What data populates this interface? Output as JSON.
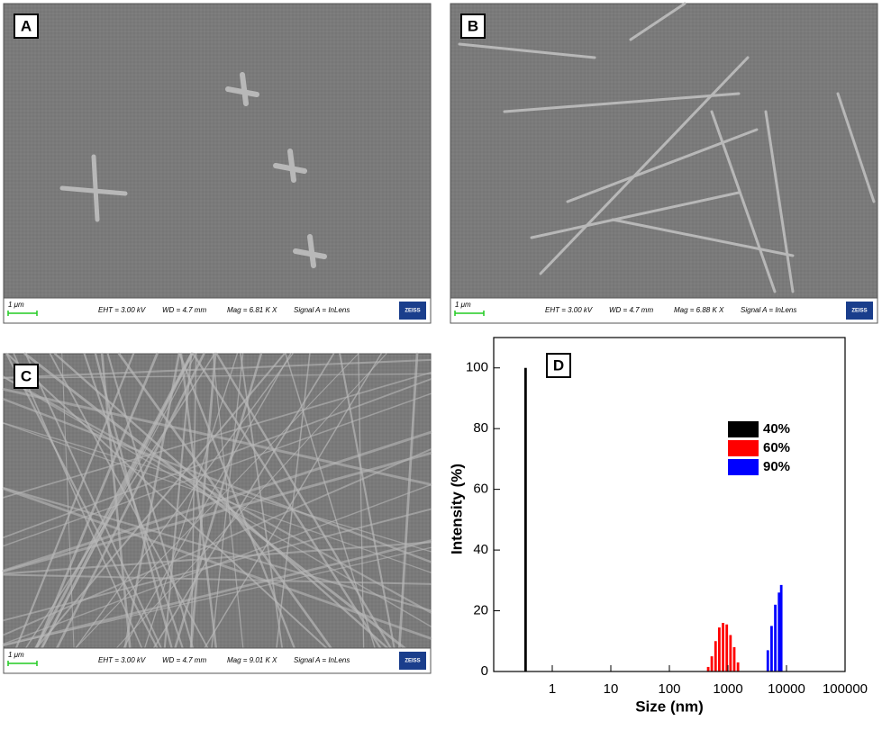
{
  "panels": [
    {
      "label": "A",
      "scale": "1 μm",
      "eht": "EHT =  3.00 kV",
      "wd": "WD =  4.7 mm",
      "mag": "Mag =   6.81 K X",
      "signal": "Signal A = InLens",
      "logo": "ZEISS"
    },
    {
      "label": "B",
      "scale": "1 μm",
      "eht": "EHT =  3.00 kV",
      "wd": "WD =  4.7 mm",
      "mag": "Mag =   6.88 K X",
      "signal": "Signal A = InLens",
      "logo": "ZEISS"
    },
    {
      "label": "C",
      "scale": "1 μm",
      "eht": "EHT =  3.00 kV",
      "wd": "WD =  4.7 mm",
      "mag": "Mag =   9.01 K X",
      "signal": "Signal A = InLens",
      "logo": "ZEISS"
    }
  ],
  "chart_data": {
    "type": "bar",
    "label": "D",
    "x_label": "Size (nm)",
    "y_label": "Intensity (%)",
    "xscale": "log",
    "xlim": [
      0.1,
      100000
    ],
    "xticks": [
      1,
      10,
      100,
      1000,
      10000,
      100000
    ],
    "ylim": [
      0,
      110
    ],
    "yticks": [
      0,
      20,
      40,
      60,
      80,
      100
    ],
    "series": [
      {
        "name": "40%",
        "color": "#000000",
        "x": [
          0.35
        ],
        "values": [
          100
        ]
      },
      {
        "name": "60%",
        "color": "#ff0000",
        "x": [
          460,
          530,
          615,
          712,
          825,
          955,
          1106,
          1281,
          1484
        ],
        "values": [
          1.5,
          5,
          10,
          14.5,
          16,
          15.5,
          12,
          8,
          3
        ]
      },
      {
        "name": "90%",
        "color": "#0000ff",
        "x": [
          4800,
          5560,
          6440,
          7460,
          8130
        ],
        "values": [
          7,
          15,
          22,
          26,
          28.5
        ]
      }
    ]
  }
}
